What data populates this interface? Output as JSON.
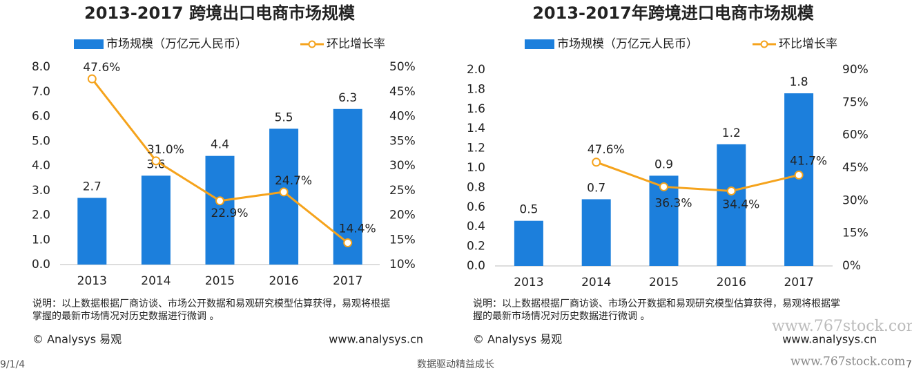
{
  "chart_data": [
    {
      "type": "bar",
      "title": "2013-2017 跨境出口电商市场规模",
      "categories": [
        "2013",
        "2014",
        "2015",
        "2016",
        "2017"
      ],
      "series": [
        {
          "name": "市场规模（万亿元人民币）",
          "color": "#1c7fdc",
          "values": [
            2.7,
            3.6,
            4.4,
            5.5,
            6.3
          ]
        },
        {
          "name": "环比增长率",
          "color": "#f5a31c",
          "type": "line",
          "axis": "y2",
          "values": [
            47.6,
            31.0,
            22.9,
            24.7,
            14.4
          ],
          "value_labels": [
            "47.6%",
            "31.0%",
            "22.9%",
            "24.7%",
            "14.4%"
          ]
        }
      ],
      "ylim": [
        0,
        8
      ],
      "yticks": [
        {
          "value": 0,
          "label": "0.0"
        },
        {
          "value": 1,
          "label": "1.0"
        },
        {
          "value": 2,
          "label": "2.0"
        },
        {
          "value": 3,
          "label": "3.0"
        },
        {
          "value": 4,
          "label": "4.0"
        },
        {
          "value": 5,
          "label": "5.0"
        },
        {
          "value": 6,
          "label": "6.0"
        },
        {
          "value": 7,
          "label": "7.0"
        },
        {
          "value": 8,
          "label": "8.0"
        }
      ],
      "y2lim": [
        10,
        50
      ],
      "y2ticks": [
        {
          "value": 10,
          "label": "10%"
        },
        {
          "value": 15,
          "label": "15%"
        },
        {
          "value": 20,
          "label": "20%"
        },
        {
          "value": 25,
          "label": "25%"
        },
        {
          "value": 30,
          "label": "30%"
        },
        {
          "value": 35,
          "label": "35%"
        },
        {
          "value": 40,
          "label": "40%"
        },
        {
          "value": 45,
          "label": "45%"
        },
        {
          "value": 50,
          "label": "50%"
        }
      ],
      "grid": false
    },
    {
      "type": "bar",
      "title": "2013-2017年跨境进口电商市场规模",
      "categories": [
        "2013",
        "2014",
        "2015",
        "2016",
        "2017"
      ],
      "series": [
        {
          "name": "市场规模（万亿元人民币）",
          "color": "#1c7fdc",
          "values": [
            0.46,
            0.68,
            0.92,
            1.24,
            1.76
          ],
          "value_labels": [
            "0.5",
            "0.7",
            "0.9",
            "1.2",
            "1.8"
          ]
        },
        {
          "name": "环比增长率",
          "color": "#f5a31c",
          "type": "line",
          "axis": "y2",
          "values": [
            null,
            47.6,
            36.3,
            34.4,
            41.7
          ],
          "value_labels": [
            null,
            "47.6%",
            "36.3%",
            "34.4%",
            "41.7%"
          ]
        }
      ],
      "ylim": [
        0,
        2
      ],
      "yticks": [
        {
          "value": 0,
          "label": "0.0"
        },
        {
          "value": 0.2,
          "label": "0.2"
        },
        {
          "value": 0.4,
          "label": "0.4"
        },
        {
          "value": 0.6,
          "label": "0.6"
        },
        {
          "value": 0.8,
          "label": "0.8"
        },
        {
          "value": 1,
          "label": "1.0"
        },
        {
          "value": 1.2,
          "label": "1.2"
        },
        {
          "value": 1.4,
          "label": "1.4"
        },
        {
          "value": 1.6,
          "label": "1.6"
        },
        {
          "value": 1.8,
          "label": "1.8"
        },
        {
          "value": 2,
          "label": "2.0"
        }
      ],
      "y2lim": [
        0,
        90
      ],
      "y2ticks": [
        {
          "value": 0,
          "label": "0%"
        },
        {
          "value": 15,
          "label": "15%"
        },
        {
          "value": 30,
          "label": "30%"
        },
        {
          "value": 45,
          "label": "45%"
        },
        {
          "value": 60,
          "label": "60%"
        },
        {
          "value": 75,
          "label": "75%"
        },
        {
          "value": 90,
          "label": "90%"
        }
      ],
      "grid": false
    }
  ],
  "notes": [
    [
      "说明：以上数据根据厂商访谈、市场公开数据和易观研究模型估算获得，易观将根据",
      "掌握的最新市场情况对历史数据进行微调 。"
    ],
    [
      "说明：以上数据根据厂商访谈、市场公开数据和易观研究模型估算获得，易观将根据掌",
      "握的最新市场情况对历史数据进行微调 。"
    ]
  ],
  "sources": [
    [
      "© Analysys 易观",
      "www.analysys.cn"
    ],
    [
      "© Analysys 易观",
      "www.analysys.cn"
    ]
  ],
  "footer": {
    "date": "9/1/4",
    "slogan": "数据驱动精益成长",
    "page": "7"
  },
  "watermarks": [
    "www.767stock.com",
    "www.767stock.com"
  ]
}
